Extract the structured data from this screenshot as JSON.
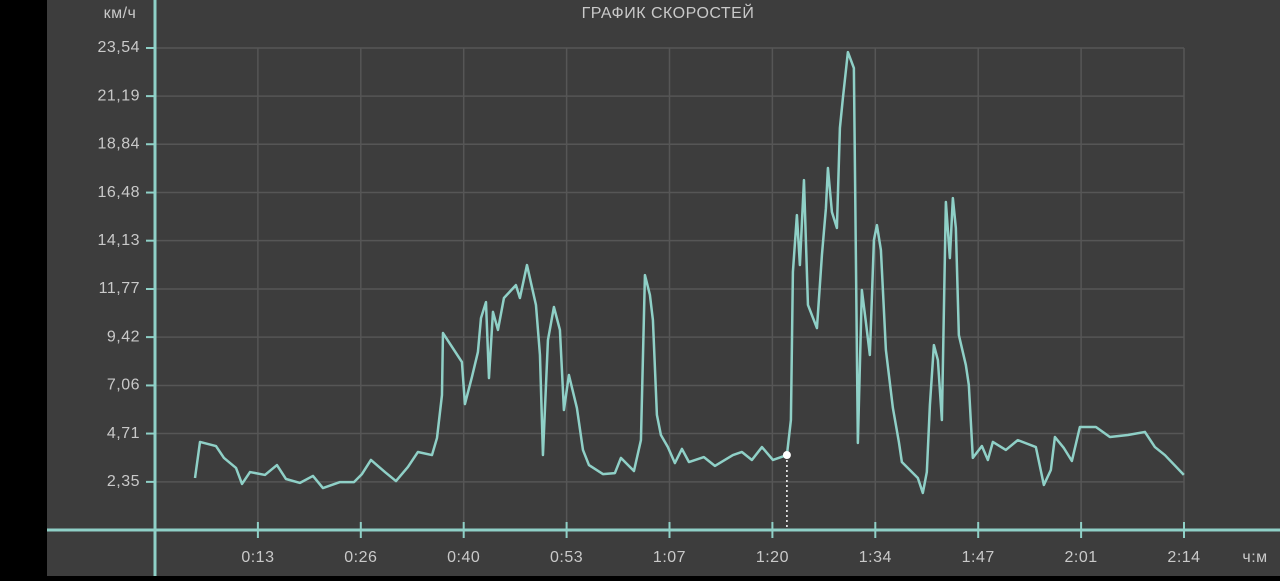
{
  "chart_data": {
    "type": "line",
    "title": "ГРАФИК СКОРОСТЕЙ",
    "y_label": "км/ч",
    "x_label": "ч:м",
    "color": "#8fd0c7",
    "grid": true,
    "xlim": [
      0,
      134
    ],
    "ylim": [
      0,
      23.54
    ],
    "xticks": [
      {
        "value": 13.4,
        "label": "0:13"
      },
      {
        "value": 26.8,
        "label": "0:26"
      },
      {
        "value": 40.2,
        "label": "0:40"
      },
      {
        "value": 53.6,
        "label": "0:53"
      },
      {
        "value": 67,
        "label": "1:07"
      },
      {
        "value": 80.4,
        "label": "1:20"
      },
      {
        "value": 93.8,
        "label": "1:34"
      },
      {
        "value": 107.2,
        "label": "1:47"
      },
      {
        "value": 120.6,
        "label": "2:01"
      },
      {
        "value": 134,
        "label": "2:14"
      }
    ],
    "yticks": [
      {
        "value": 2.35,
        "label": "2,35"
      },
      {
        "value": 4.71,
        "label": "4,71"
      },
      {
        "value": 7.06,
        "label": "7,06"
      },
      {
        "value": 9.42,
        "label": "9,42"
      },
      {
        "value": 11.77,
        "label": "11,77"
      },
      {
        "value": 14.13,
        "label": "14,13"
      },
      {
        "value": 16.48,
        "label": "16,48"
      },
      {
        "value": 18.84,
        "label": "18,84"
      },
      {
        "value": 21.19,
        "label": "21,19"
      },
      {
        "value": 23.54,
        "label": "23,54"
      }
    ],
    "x": [
      5.21,
      5.86,
      7.94,
      8.98,
      10.55,
      11.33,
      12.37,
      14.32,
      15.88,
      17.06,
      18.88,
      20.57,
      21.87,
      24.09,
      25.91,
      26.95,
      28.12,
      29.95,
      31.38,
      32.94,
      34.24,
      36.07,
      36.72,
      37.37,
      37.5,
      39.97,
      40.36,
      41.27,
      42.05,
      42.45,
      43.1,
      43.49,
      44.01,
      44.66,
      45.44,
      47.0,
      47.52,
      48.44,
      49.61,
      50.13,
      50.52,
      51.17,
      51.95,
      52.73,
      53.25,
      53.9,
      54.94,
      55.73,
      56.51,
      58.33,
      59.89,
      60.67,
      62.37,
      63.28,
      63.8,
      64.45,
      64.84,
      65.36,
      65.88,
      66.79,
      67.7,
      68.62,
      69.53,
      71.48,
      72.91,
      75.26,
      76.43,
      77.73,
      79.04,
      80.47,
      82.29,
      82.81,
      83.07,
      83.59,
      83.98,
      84.51,
      85.03,
      86.2,
      86.85,
      87.37,
      87.63,
      88.15,
      88.8,
      89.19,
      89.58,
      90.23,
      91.01,
      91.53,
      92.05,
      92.57,
      93.09,
      93.62,
      94.01,
      94.53,
      95.18,
      96.09,
      96.87,
      97.26,
      99.34,
      99.99,
      100.51,
      100.91,
      101.43,
      101.95,
      102.47,
      102.99,
      103.51,
      103.9,
      104.29,
      104.68,
      105.59,
      105.98,
      106.5,
      107.68,
      108.46,
      109.11,
      110.8,
      112.36,
      114.71,
      115.75,
      116.66,
      117.19,
      118.36,
      119.4,
      120.44,
      122.53,
      124.35,
      126.69,
      128.91,
      130.21,
      131.51,
      133.98
    ],
    "values": [
      2.54,
      4.3,
      4.1,
      3.52,
      3.03,
      2.25,
      2.83,
      2.69,
      3.17,
      2.49,
      2.3,
      2.64,
      2.05,
      2.34,
      2.34,
      2.73,
      3.42,
      2.83,
      2.39,
      3.08,
      3.81,
      3.66,
      4.49,
      6.59,
      9.62,
      8.2,
      6.15,
      7.47,
      8.69,
      10.35,
      11.13,
      7.42,
      10.65,
      9.77,
      11.33,
      11.96,
      11.33,
      12.94,
      10.99,
      8.55,
      3.66,
      9.28,
      10.89,
      9.77,
      5.86,
      7.57,
      5.96,
      3.91,
      3.17,
      2.73,
      2.78,
      3.52,
      2.88,
      4.39,
      12.45,
      11.48,
      10.25,
      5.62,
      4.64,
      4.05,
      3.27,
      3.96,
      3.32,
      3.56,
      3.13,
      3.66,
      3.81,
      3.42,
      4.05,
      3.42,
      3.66,
      5.37,
      12.6,
      15.38,
      12.94,
      17.09,
      10.99,
      9.86,
      13.43,
      15.72,
      17.68,
      15.53,
      14.75,
      19.63,
      21.09,
      23.34,
      22.56,
      4.25,
      11.72,
      10.16,
      8.55,
      14.16,
      14.89,
      13.67,
      8.79,
      5.96,
      4.3,
      3.32,
      2.54,
      1.81,
      2.83,
      6.1,
      9.03,
      8.3,
      5.37,
      16.02,
      13.28,
      16.21,
      14.75,
      9.52,
      8.06,
      7.08,
      3.52,
      4.1,
      3.42,
      4.3,
      3.91,
      4.39,
      4.05,
      2.2,
      2.93,
      4.54,
      4.0,
      3.37,
      5.03,
      5.03,
      4.54,
      4.64,
      4.79,
      4.05,
      3.66,
      2.69
    ],
    "cursor": {
      "x": 82.29,
      "y": 3.66
    }
  }
}
